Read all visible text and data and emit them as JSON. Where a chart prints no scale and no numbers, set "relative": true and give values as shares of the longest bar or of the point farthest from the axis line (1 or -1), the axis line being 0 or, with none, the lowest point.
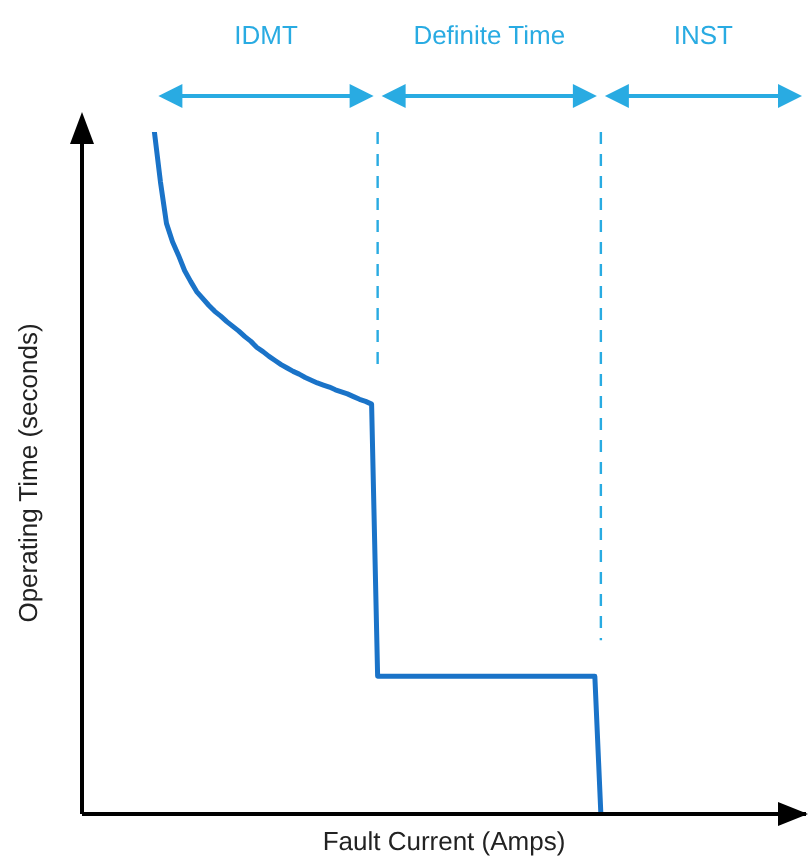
{
  "chart_data": {
    "type": "line",
    "relative": true,
    "xlabel": "Fault Current (Amps)",
    "ylabel": "Operating Time (seconds)",
    "categories": [
      null,
      null,
      null,
      null,
      null,
      null,
      null,
      null,
      null,
      null,
      null,
      null,
      null,
      null,
      null,
      null,
      null,
      null,
      null,
      null,
      null,
      null,
      null,
      null,
      null,
      null,
      null,
      null,
      null,
      null,
      null,
      null,
      null,
      null,
      null,
      null,
      null,
      null,
      null,
      null,
      null,
      null,
      null,
      null,
      null,
      null,
      null,
      null,
      null,
      null,
      null,
      null,
      null,
      null,
      null,
      null,
      null,
      null,
      null,
      null,
      null,
      null,
      null,
      null,
      null,
      null,
      null,
      null,
      null,
      null,
      null,
      null,
      null,
      null,
      null,
      null,
      null,
      null,
      null,
      null,
      null,
      null,
      null,
      null,
      null,
      null,
      null,
      null,
      null,
      null,
      null,
      null,
      null,
      null,
      null,
      null,
      null,
      null,
      null,
      null,
      null,
      null,
      null,
      null,
      null,
      null,
      null,
      null,
      null,
      null,
      null,
      null,
      null,
      null,
      null,
      null,
      null,
      null,
      null,
      null,
      null
    ],
    "values": [
      null,
      null,
      null,
      null,
      null,
      null,
      null,
      null,
      null,
      null,
      null,
      null,
      1,
      0.927,
      0.866,
      0.839,
      0.819,
      0.797,
      0.781,
      0.766,
      0.756,
      0.746,
      0.737,
      0.73,
      0.722,
      0.715,
      0.708,
      0.7,
      0.693,
      0.684,
      0.678,
      0.671,
      0.665,
      0.659,
      0.654,
      0.649,
      0.645,
      0.64,
      0.636,
      0.632,
      0.629,
      0.626,
      0.622,
      0.619,
      0.616,
      0.612,
      0.608,
      0.605,
      0.601,
      0.202,
      0.202,
      0.202,
      0.202,
      0.202,
      0.202,
      0.202,
      0.202,
      0.202,
      0.202,
      0.202,
      0.202,
      0.202,
      0.202,
      0.202,
      0.202,
      0.202,
      0.202,
      0.202,
      0.202,
      0.202,
      0.202,
      0.202,
      0.202,
      0.202,
      0.202,
      0.202,
      0.202,
      0.202,
      0.202,
      0.202,
      0.202,
      0.202,
      0.202,
      0.202,
      0.202,
      0.202,
      0,
      null,
      null,
      null,
      null,
      null,
      null,
      null,
      null,
      null,
      null,
      null,
      null,
      null,
      null,
      null,
      null,
      null,
      null,
      null,
      null,
      null,
      null,
      null,
      null,
      null,
      null,
      null,
      null,
      null,
      null,
      null,
      null,
      null,
      null
    ],
    "color": "#1a73c8",
    "annotations": [
      "IDMT",
      "Definite Time",
      "INST"
    ]
  }
}
